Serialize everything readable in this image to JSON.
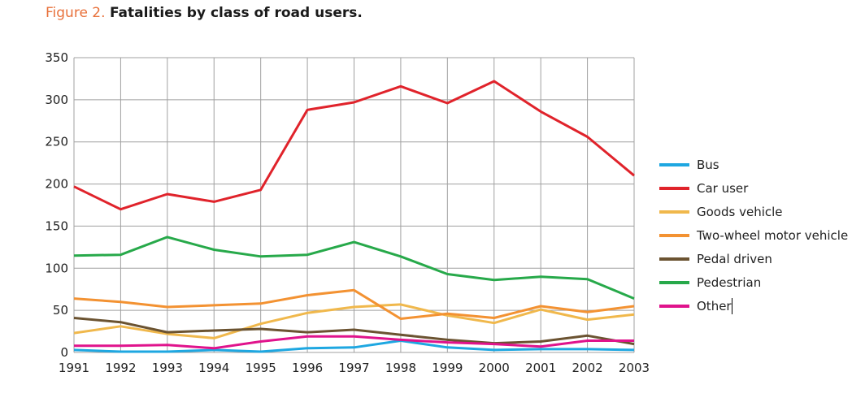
{
  "title": {
    "figure_label": "Figure 2.",
    "text": "Fatalities by class of road users."
  },
  "chart_data": {
    "type": "line",
    "title": "Figure 2. Fatalities by class of road users.",
    "xlabel": "",
    "ylabel": "",
    "x": [
      "1991",
      "1992",
      "1993",
      "1994",
      "1995",
      "1996",
      "1997",
      "1998",
      "1999",
      "2000",
      "2001",
      "2002",
      "2003"
    ],
    "ylim": [
      0,
      350
    ],
    "yticks": [
      0,
      50,
      100,
      150,
      200,
      250,
      300,
      350
    ],
    "grid": true,
    "legend_position": "right",
    "series": [
      {
        "name": "Bus",
        "color": "#1ea7e1",
        "values": [
          3,
          1,
          1,
          3,
          1,
          5,
          6,
          14,
          6,
          3,
          4,
          4,
          3
        ]
      },
      {
        "name": "Car user",
        "color": "#e0232b",
        "values": [
          197,
          170,
          188,
          179,
          193,
          288,
          297,
          316,
          296,
          322,
          286,
          256,
          210
        ]
      },
      {
        "name": "Goods vehicle",
        "color": "#f0b84c",
        "values": [
          23,
          31,
          22,
          17,
          34,
          47,
          54,
          57,
          44,
          35,
          51,
          39,
          45
        ]
      },
      {
        "name": "Two-wheel motor vehicle",
        "color": "#f39232",
        "values": [
          64,
          60,
          54,
          56,
          58,
          68,
          74,
          40,
          46,
          41,
          55,
          48,
          55
        ]
      },
      {
        "name": "Pedal driven",
        "color": "#6b5331",
        "values": [
          41,
          36,
          24,
          26,
          28,
          24,
          27,
          21,
          15,
          11,
          13,
          20,
          10
        ]
      },
      {
        "name": "Pedestrian",
        "color": "#27a94a",
        "values": [
          115,
          116,
          137,
          122,
          114,
          116,
          131,
          114,
          93,
          86,
          90,
          87,
          64
        ]
      },
      {
        "name": "Other",
        "color": "#e0138c",
        "values": [
          8,
          8,
          9,
          5,
          13,
          19,
          19,
          15,
          12,
          10,
          7,
          14,
          14
        ]
      }
    ]
  },
  "legend": {
    "items": [
      {
        "label": "Bus",
        "color": "#1ea7e1"
      },
      {
        "label": "Car user",
        "color": "#e0232b"
      },
      {
        "label": "Goods vehicle",
        "color": "#f0b84c"
      },
      {
        "label": "Two-wheel motor vehicle",
        "color": "#f39232"
      },
      {
        "label": "Pedal driven",
        "color": "#6b5331"
      },
      {
        "label": "Pedestrian",
        "color": "#27a94a"
      },
      {
        "label": "Other",
        "color": "#e0138c"
      }
    ]
  }
}
